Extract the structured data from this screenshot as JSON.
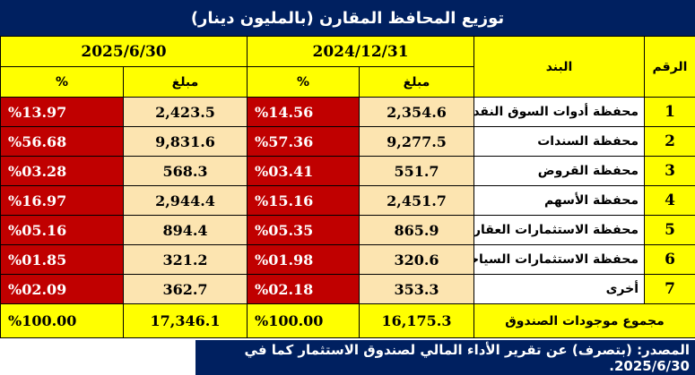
{
  "title": "توزيع المحافظ المقارن (بالمليون دينار)",
  "headers": {
    "number": "الرقم",
    "item": "البند",
    "period1": "2024/12/31",
    "period2": "2025/6/30",
    "amount": "مبلغ",
    "percent": "%"
  },
  "rows": [
    {
      "num": "1",
      "item": "محفظة أدوات السوق النقدي",
      "amt1": "2,354.6",
      "pct1": "%14.56",
      "amt2": "2,423.5",
      "pct2": "%13.97"
    },
    {
      "num": "2",
      "item": "محفظة السندات",
      "amt1": "9,277.5",
      "pct1": "%57.36",
      "amt2": "9,831.6",
      "pct2": "%56.68"
    },
    {
      "num": "3",
      "item": "محفظة القروض",
      "amt1": "551.7",
      "pct1": "%03.41",
      "amt2": "568.3",
      "pct2": "%03.28"
    },
    {
      "num": "4",
      "item": "محفظة الأسهم",
      "amt1": "2,451.7",
      "pct1": "%15.16",
      "amt2": "2,944.4",
      "pct2": "%16.97"
    },
    {
      "num": "5",
      "item": "محفظة الاستثمارات العقارية",
      "amt1": "865.9",
      "pct1": "%05.35",
      "amt2": "894.4",
      "pct2": "%05.16"
    },
    {
      "num": "6",
      "item": "محفظة الاستثمارات السياحية",
      "amt1": "320.6",
      "pct1": "%01.98",
      "amt2": "321.2",
      "pct2": "%01.85"
    },
    {
      "num": "7",
      "item": "أخرى",
      "amt1": "353.3",
      "pct1": "%02.18",
      "amt2": "362.7",
      "pct2": "%02.09"
    }
  ],
  "total": {
    "label": "مجموع موجودات الصندوق",
    "amt1": "16,175.3",
    "pct1": "%100.00",
    "amt2": "17,346.1",
    "pct2": "%100.00"
  },
  "source": "المصدر: (بتصرف) عن تقرير الأداء المالي لصندوق الاستثمار كما في 2025/6/30."
}
